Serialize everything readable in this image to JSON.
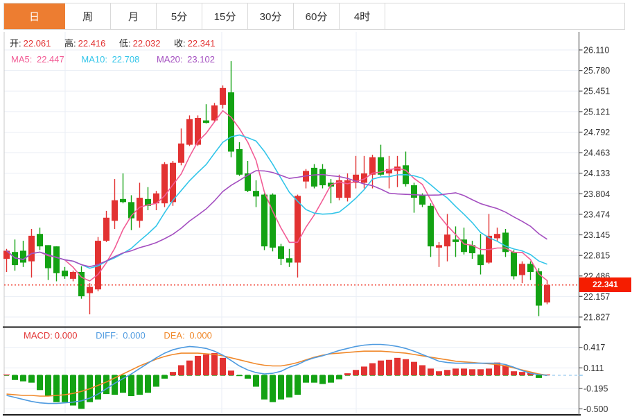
{
  "tabs": {
    "items": [
      "日",
      "周",
      "月",
      "5分",
      "15分",
      "30分",
      "60分",
      "4时"
    ],
    "active_index": 0
  },
  "indicators": {
    "ohlc": {
      "open_label": "开:",
      "open": "22.061",
      "high_label": "高:",
      "high": "22.416",
      "low_label": "低:",
      "low": "22.032",
      "close_label": "收:",
      "close": "22.341"
    },
    "ma": {
      "ma5_label": "MA5:",
      "ma5": "22.447",
      "ma10_label": "MA10:",
      "ma10": "22.708",
      "ma20_label": "MA20:",
      "ma20": "23.102"
    },
    "macd": {
      "macd_label": "MACD:",
      "macd": "0.000",
      "diff_label": "DIFF:",
      "diff": "0.000",
      "dea_label": "DEA:",
      "dea": "0.000"
    }
  },
  "chart_data": {
    "type": "candlestick+macd",
    "timeframe_selected": "日",
    "current_price": "22.341",
    "price_axis": {
      "tick_labels": [
        "26.110",
        "25.780",
        "25.451",
        "25.121",
        "24.792",
        "24.463",
        "24.133",
        "23.804",
        "23.474",
        "23.145",
        "22.815",
        "22.486",
        "22.157",
        "21.827"
      ]
    },
    "vgrid_x": [
      94,
      320,
      514
    ],
    "candles_format": [
      "open",
      "high",
      "low",
      "close"
    ],
    "candles": [
      [
        22.76,
        22.92,
        22.55,
        22.89
      ],
      [
        22.87,
        23.07,
        22.57,
        22.66
      ],
      [
        22.89,
        23.05,
        22.63,
        22.7
      ],
      [
        22.72,
        23.24,
        22.46,
        23.13
      ],
      [
        23.16,
        23.26,
        22.9,
        22.96
      ],
      [
        22.98,
        22.98,
        22.42,
        22.61
      ],
      [
        22.96,
        22.96,
        22.4,
        22.53
      ],
      [
        22.57,
        22.63,
        22.44,
        22.48
      ],
      [
        22.44,
        22.57,
        22.4,
        22.55
      ],
      [
        22.55,
        22.64,
        22.12,
        22.16
      ],
      [
        22.21,
        22.37,
        21.87,
        22.31
      ],
      [
        22.27,
        23.11,
        22.24,
        23.05
      ],
      [
        23.05,
        23.53,
        23.03,
        23.42
      ],
      [
        23.37,
        24.04,
        23.24,
        23.7
      ],
      [
        23.72,
        24.13,
        23.65,
        23.67
      ],
      [
        23.67,
        23.78,
        23.22,
        23.41
      ],
      [
        23.37,
        23.98,
        23.26,
        23.74
      ],
      [
        23.72,
        23.91,
        23.54,
        23.61
      ],
      [
        23.65,
        23.85,
        23.54,
        23.81
      ],
      [
        23.65,
        24.31,
        23.59,
        24.28
      ],
      [
        23.67,
        24.33,
        23.61,
        24.3
      ],
      [
        24.3,
        24.85,
        24.26,
        24.61
      ],
      [
        24.59,
        25.06,
        24.57,
        25.0
      ],
      [
        24.59,
        25.06,
        24.57,
        25.02
      ],
      [
        24.98,
        25.24,
        24.93,
        24.94
      ],
      [
        24.98,
        25.26,
        24.96,
        25.22
      ],
      [
        25.23,
        25.54,
        25.17,
        25.5
      ],
      [
        25.43,
        25.93,
        24.39,
        24.48
      ],
      [
        24.52,
        24.63,
        24.09,
        24.11
      ],
      [
        24.13,
        24.33,
        23.83,
        23.85
      ],
      [
        23.85,
        24.02,
        23.59,
        23.76
      ],
      [
        23.79,
        23.81,
        22.9,
        22.96
      ],
      [
        23.79,
        23.81,
        22.88,
        22.94
      ],
      [
        22.96,
        23.0,
        22.66,
        22.76
      ],
      [
        22.77,
        22.92,
        22.63,
        22.7
      ],
      [
        22.7,
        23.79,
        22.46,
        23.77
      ],
      [
        24.0,
        24.2,
        23.89,
        24.17
      ],
      [
        24.22,
        24.28,
        23.89,
        23.92
      ],
      [
        24.2,
        24.28,
        23.89,
        23.94
      ],
      [
        23.98,
        24.04,
        23.65,
        23.92
      ],
      [
        23.74,
        24.11,
        23.7,
        24.02
      ],
      [
        23.74,
        24.13,
        23.68,
        24.02
      ],
      [
        23.98,
        24.41,
        23.89,
        24.11
      ],
      [
        23.98,
        24.41,
        23.89,
        24.13
      ],
      [
        24.11,
        24.43,
        23.89,
        24.39
      ],
      [
        24.39,
        24.59,
        24.09,
        24.11
      ],
      [
        24.13,
        24.41,
        23.89,
        24.2
      ],
      [
        24.17,
        24.41,
        23.91,
        24.24
      ],
      [
        24.26,
        24.48,
        23.92,
        23.96
      ],
      [
        23.94,
        23.98,
        23.5,
        23.74
      ],
      [
        23.78,
        23.81,
        23.59,
        23.63
      ],
      [
        23.61,
        23.65,
        22.79,
        22.96
      ],
      [
        22.94,
        23.03,
        22.63,
        22.98
      ],
      [
        22.96,
        23.48,
        22.72,
        23.15
      ],
      [
        23.07,
        23.28,
        22.79,
        23.03
      ],
      [
        23.07,
        23.26,
        22.83,
        22.87
      ],
      [
        22.98,
        23.05,
        22.76,
        22.85
      ],
      [
        22.83,
        23.16,
        22.51,
        22.66
      ],
      [
        22.7,
        23.48,
        22.68,
        23.13
      ],
      [
        23.09,
        23.26,
        23.05,
        23.16
      ],
      [
        23.18,
        23.24,
        22.79,
        22.87
      ],
      [
        22.87,
        22.9,
        22.43,
        22.48
      ],
      [
        22.5,
        22.72,
        22.37,
        22.68
      ],
      [
        22.68,
        22.72,
        22.42,
        22.55
      ],
      [
        22.56,
        22.61,
        21.84,
        22.01
      ],
      [
        22.061,
        22.416,
        22.032,
        22.341
      ]
    ],
    "ma_periods": [
      5,
      10,
      20
    ],
    "macd": {
      "tick_labels": [
        "0.417",
        "0.111",
        "-0.195",
        "-0.500"
      ],
      "bars": [
        0.01,
        -0.07,
        -0.09,
        -0.11,
        -0.22,
        -0.31,
        -0.4,
        -0.4,
        -0.45,
        -0.5,
        -0.4,
        -0.36,
        -0.28,
        -0.29,
        -0.26,
        -0.31,
        -0.29,
        -0.26,
        -0.17,
        -0.05,
        0.05,
        0.15,
        0.22,
        0.29,
        0.31,
        0.33,
        0.26,
        0.07,
        -0.01,
        -0.05,
        -0.17,
        -0.36,
        -0.4,
        -0.36,
        -0.33,
        -0.29,
        -0.11,
        -0.11,
        -0.13,
        -0.11,
        -0.06,
        0.03,
        0.08,
        0.13,
        0.18,
        0.22,
        0.23,
        0.26,
        0.24,
        0.2,
        0.15,
        0.1,
        0.06,
        0.08,
        0.1,
        0.1,
        0.09,
        0.09,
        0.1,
        0.19,
        0.15,
        0.06,
        0.05,
        0.04,
        -0.04,
        0.0
      ],
      "diff": [
        -0.3,
        -0.33,
        -0.36,
        -0.39,
        -0.41,
        -0.42,
        -0.42,
        -0.41,
        -0.4,
        -0.38,
        -0.34,
        -0.28,
        -0.2,
        -0.12,
        -0.05,
        0.02,
        0.1,
        0.18,
        0.26,
        0.33,
        0.38,
        0.41,
        0.43,
        0.42,
        0.4,
        0.36,
        0.3,
        0.22,
        0.14,
        0.08,
        0.04,
        0.02,
        0.03,
        0.06,
        0.12,
        0.16,
        0.22,
        0.26,
        0.29,
        0.33,
        0.37,
        0.4,
        0.43,
        0.45,
        0.46,
        0.46,
        0.45,
        0.43,
        0.4,
        0.36,
        0.31,
        0.26,
        0.21,
        0.19,
        0.18,
        0.18,
        0.18,
        0.18,
        0.18,
        0.18,
        0.16,
        0.12,
        0.07,
        0.03,
        0.01,
        0.0
      ],
      "dea": [
        -0.28,
        -0.29,
        -0.3,
        -0.3,
        -0.31,
        -0.31,
        -0.3,
        -0.29,
        -0.27,
        -0.24,
        -0.2,
        -0.15,
        -0.1,
        -0.04,
        0.02,
        0.08,
        0.14,
        0.19,
        0.24,
        0.28,
        0.31,
        0.33,
        0.33,
        0.33,
        0.32,
        0.31,
        0.29,
        0.26,
        0.23,
        0.2,
        0.17,
        0.15,
        0.14,
        0.14,
        0.16,
        0.19,
        0.23,
        0.27,
        0.3,
        0.32,
        0.33,
        0.34,
        0.35,
        0.36,
        0.36,
        0.36,
        0.35,
        0.34,
        0.33,
        0.31,
        0.29,
        0.27,
        0.25,
        0.23,
        0.21,
        0.2,
        0.19,
        0.18,
        0.17,
        0.16,
        0.14,
        0.11,
        0.08,
        0.05,
        0.02,
        0.0
      ]
    }
  },
  "colors": {
    "up": "#e23232",
    "down": "#13a213",
    "ma5": "#f25c95",
    "ma10": "#32c5e9",
    "ma20": "#a44fc0",
    "diff_line": "#4f9be0",
    "dea_line": "#f0882a",
    "grid": "#e9eef5",
    "axis_line": "#555555",
    "left_border": "#c9c9c9",
    "pane_border": "#1a1a1a",
    "dotted_price_line": "#f03b2d",
    "badge": "#f51d00",
    "tab_active": "#ed7d31",
    "macd_zero": "#2da52d",
    "macd_current": "#a8d4f2",
    "axis_text": "#333333"
  }
}
